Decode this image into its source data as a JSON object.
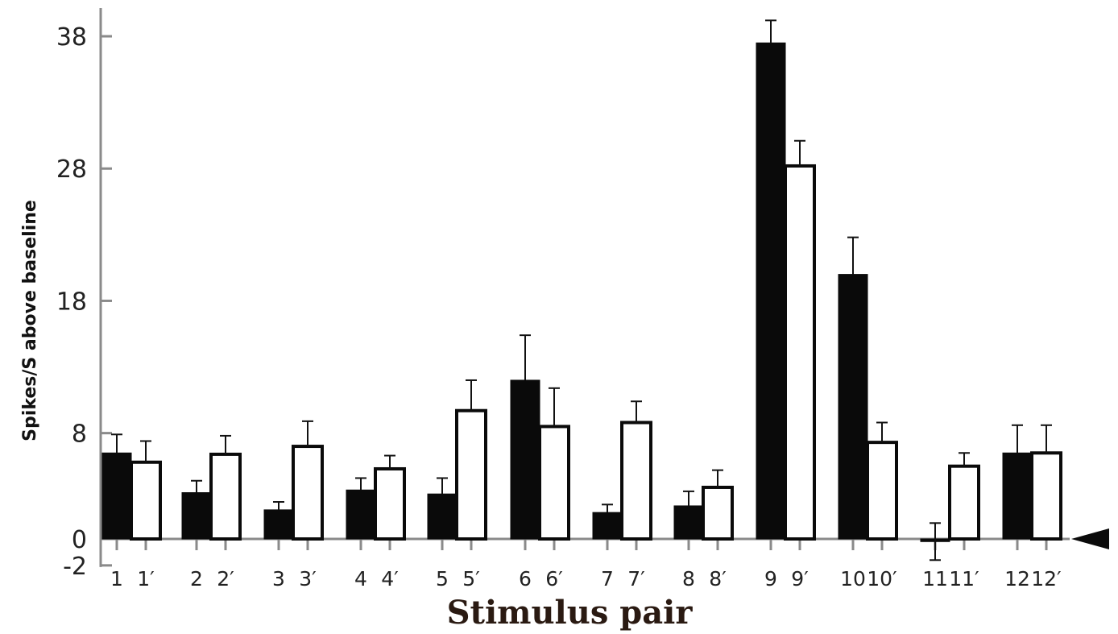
{
  "chart_data": {
    "type": "bar",
    "xlabel": "Stimulus pair",
    "ylabel": "Spikes/S above baseline",
    "ylim": [
      -2,
      38
    ],
    "yticks": [
      38,
      28,
      18,
      8,
      0,
      -2
    ],
    "categories": [
      "1",
      "1′",
      "2",
      "2′",
      "3",
      "3′",
      "4",
      "4′",
      "5",
      "5′",
      "6",
      "6′",
      "7",
      "7′",
      "8",
      "8′",
      "9",
      "9′",
      "10",
      "10′",
      "11",
      "11′",
      "12",
      "12′"
    ],
    "values": [
      6.5,
      5.8,
      3.5,
      6.4,
      2.2,
      7.0,
      3.7,
      5.3,
      3.4,
      9.7,
      12.0,
      8.5,
      2.0,
      8.8,
      2.5,
      3.9,
      37.5,
      28.2,
      20.0,
      7.3,
      -0.2,
      5.5,
      6.5,
      6.5
    ],
    "errors": [
      1.4,
      1.6,
      0.9,
      1.4,
      0.6,
      1.9,
      0.9,
      1.0,
      1.2,
      2.3,
      3.4,
      2.9,
      0.6,
      1.6,
      1.1,
      1.3,
      1.7,
      1.9,
      2.8,
      1.5,
      1.4,
      1.0,
      2.1,
      2.1
    ],
    "series_style": [
      "filled",
      "open",
      "filled",
      "open",
      "filled",
      "open",
      "filled",
      "open",
      "filled",
      "open",
      "filled",
      "open",
      "filled",
      "open",
      "filled",
      "open",
      "filled",
      "open",
      "filled",
      "open",
      "filled",
      "open",
      "filled",
      "open"
    ],
    "baseline_marker": "arrowhead at 0, right side",
    "colors": {
      "filled": "#0a0a0a",
      "open": "#ffffff",
      "axis": "#8a8a8a",
      "stroke": "#0a0a0a"
    }
  }
}
